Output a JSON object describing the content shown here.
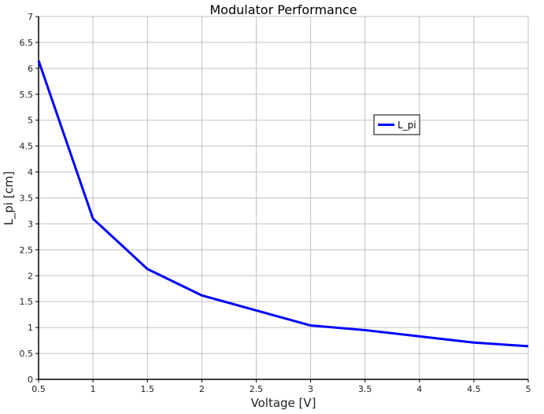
{
  "chart_data": {
    "type": "line",
    "title": "Modulator Performance",
    "xlabel": "Voltage [V]",
    "ylabel": "L_pi [cm]",
    "xlim": [
      0.5,
      5
    ],
    "ylim": [
      0,
      7
    ],
    "xticks": [
      "0.5",
      "1",
      "1.5",
      "2",
      "2.5",
      "3",
      "3.5",
      "4",
      "4.5",
      "5"
    ],
    "yticks": [
      "0",
      "0.5",
      "1",
      "1.5",
      "2",
      "2.5",
      "3",
      "3.5",
      "4",
      "4.5",
      "5",
      "5.5",
      "6",
      "6.5",
      "7"
    ],
    "grid": true,
    "legend_placement": "upper-right",
    "series": [
      {
        "name": "L_pi",
        "color": "#0000ff",
        "x": [
          0.5,
          1,
          1.5,
          2,
          3,
          3.5,
          4,
          4.5,
          5
        ],
        "y": [
          6.15,
          3.1,
          2.13,
          1.62,
          1.04,
          0.95,
          0.83,
          0.71,
          0.64
        ]
      }
    ]
  }
}
